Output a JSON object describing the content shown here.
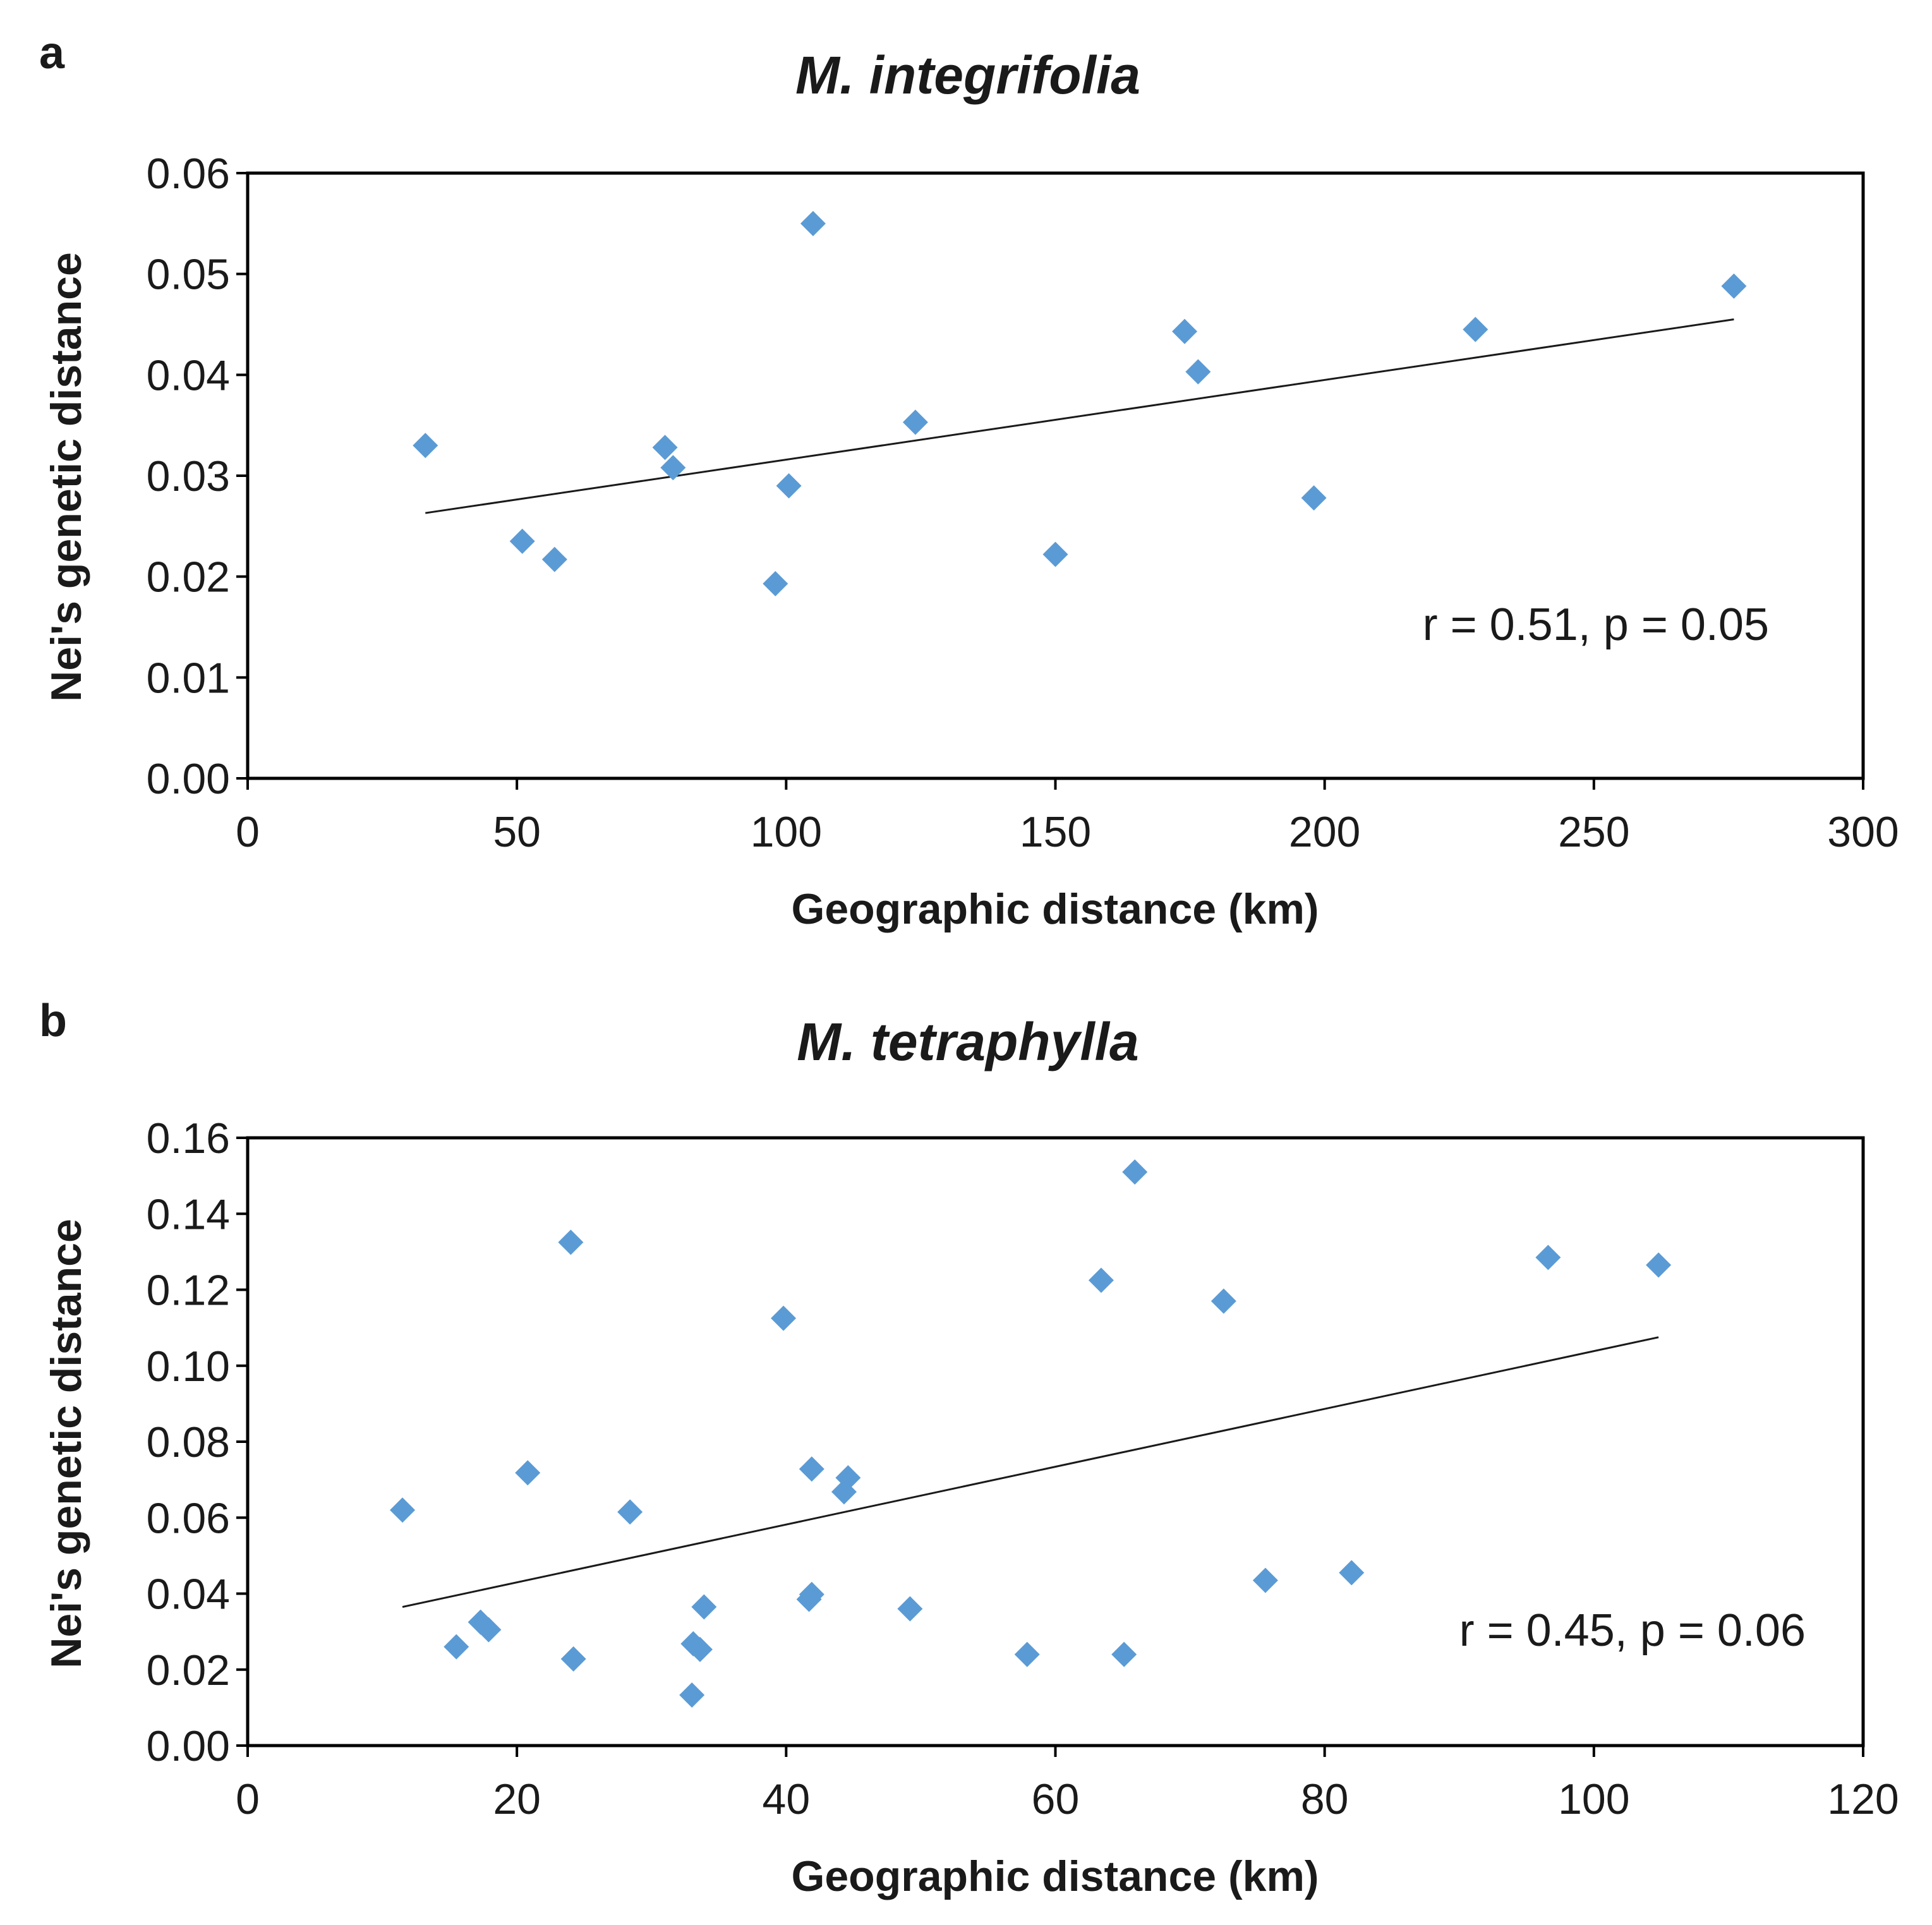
{
  "colors": {
    "marker": "#5b9bd5",
    "trendline": "#1a1a1a",
    "frame": "#000000"
  },
  "chart_data": [
    {
      "panel": "a",
      "type": "scatter",
      "title": "M. integrifolia",
      "xlabel": "Geographic distance (km)",
      "ylabel": "Nei's genetic distance",
      "xlim": [
        0,
        300
      ],
      "ylim": [
        0,
        0.06
      ],
      "xticks": [
        "0",
        "50",
        "100",
        "150",
        "200",
        "250",
        "300"
      ],
      "yticks": [
        "0.00",
        "0.01",
        "0.02",
        "0.03",
        "0.04",
        "0.05",
        "0.06"
      ],
      "xtick_values": [
        0,
        50,
        100,
        150,
        200,
        250,
        300
      ],
      "ytick_values": [
        0,
        0.01,
        0.02,
        0.03,
        0.04,
        0.05,
        0.06
      ],
      "annotation": "r = 0.51, p = 0.05",
      "trendline": {
        "x": [
          33,
          276
        ],
        "y": [
          0.0263,
          0.0455
        ]
      },
      "points": [
        {
          "x": 33,
          "y": 0.033
        },
        {
          "x": 51,
          "y": 0.0235
        },
        {
          "x": 57,
          "y": 0.0217
        },
        {
          "x": 77.5,
          "y": 0.0328
        },
        {
          "x": 79,
          "y": 0.0308
        },
        {
          "x": 98,
          "y": 0.0193
        },
        {
          "x": 100.5,
          "y": 0.029
        },
        {
          "x": 105,
          "y": 0.055
        },
        {
          "x": 124,
          "y": 0.0353
        },
        {
          "x": 150,
          "y": 0.0222
        },
        {
          "x": 174,
          "y": 0.0443
        },
        {
          "x": 176.5,
          "y": 0.0403
        },
        {
          "x": 198,
          "y": 0.0278
        },
        {
          "x": 228,
          "y": 0.0445
        },
        {
          "x": 276,
          "y": 0.0488
        }
      ]
    },
    {
      "panel": "b",
      "type": "scatter",
      "title": "M. tetraphylla",
      "xlabel": "Geographic distance (km)",
      "ylabel": "Nei's genetic distance",
      "xlim": [
        0,
        120
      ],
      "ylim": [
        0,
        0.16
      ],
      "xticks": [
        "0",
        "20",
        "40",
        "60",
        "80",
        "100",
        "120"
      ],
      "yticks": [
        "0.00",
        "0.02",
        "0.04",
        "0.06",
        "0.08",
        "0.10",
        "0.12",
        "0.14",
        "0.16"
      ],
      "xtick_values": [
        0,
        20,
        40,
        60,
        80,
        100,
        120
      ],
      "ytick_values": [
        0,
        0.02,
        0.04,
        0.06,
        0.08,
        0.1,
        0.12,
        0.14,
        0.16
      ],
      "annotation": "r = 0.45, p = 0.06",
      "trendline": {
        "x": [
          11.5,
          104.8
        ],
        "y": [
          0.0365,
          0.1075
        ]
      },
      "points": [
        {
          "x": 11.5,
          "y": 0.062
        },
        {
          "x": 15.5,
          "y": 0.026
        },
        {
          "x": 17.3,
          "y": 0.0325
        },
        {
          "x": 17.9,
          "y": 0.0305
        },
        {
          "x": 20.8,
          "y": 0.0718
        },
        {
          "x": 24,
          "y": 0.1325
        },
        {
          "x": 24.2,
          "y": 0.0228
        },
        {
          "x": 28.4,
          "y": 0.0615
        },
        {
          "x": 33.1,
          "y": 0.0268
        },
        {
          "x": 33,
          "y": 0.0133
        },
        {
          "x": 33.6,
          "y": 0.0253
        },
        {
          "x": 33.9,
          "y": 0.0365
        },
        {
          "x": 39.8,
          "y": 0.1125
        },
        {
          "x": 41.7,
          "y": 0.0385
        },
        {
          "x": 41.9,
          "y": 0.0398
        },
        {
          "x": 41.9,
          "y": 0.0728
        },
        {
          "x": 44.3,
          "y": 0.0668
        },
        {
          "x": 44.6,
          "y": 0.0705
        },
        {
          "x": 49.2,
          "y": 0.036
        },
        {
          "x": 57.9,
          "y": 0.024
        },
        {
          "x": 63.4,
          "y": 0.1225
        },
        {
          "x": 65.1,
          "y": 0.024
        },
        {
          "x": 65.9,
          "y": 0.151
        },
        {
          "x": 72.5,
          "y": 0.117
        },
        {
          "x": 75.6,
          "y": 0.0435
        },
        {
          "x": 82,
          "y": 0.0455
        },
        {
          "x": 96.6,
          "y": 0.1285
        },
        {
          "x": 104.8,
          "y": 0.1265
        }
      ]
    }
  ]
}
